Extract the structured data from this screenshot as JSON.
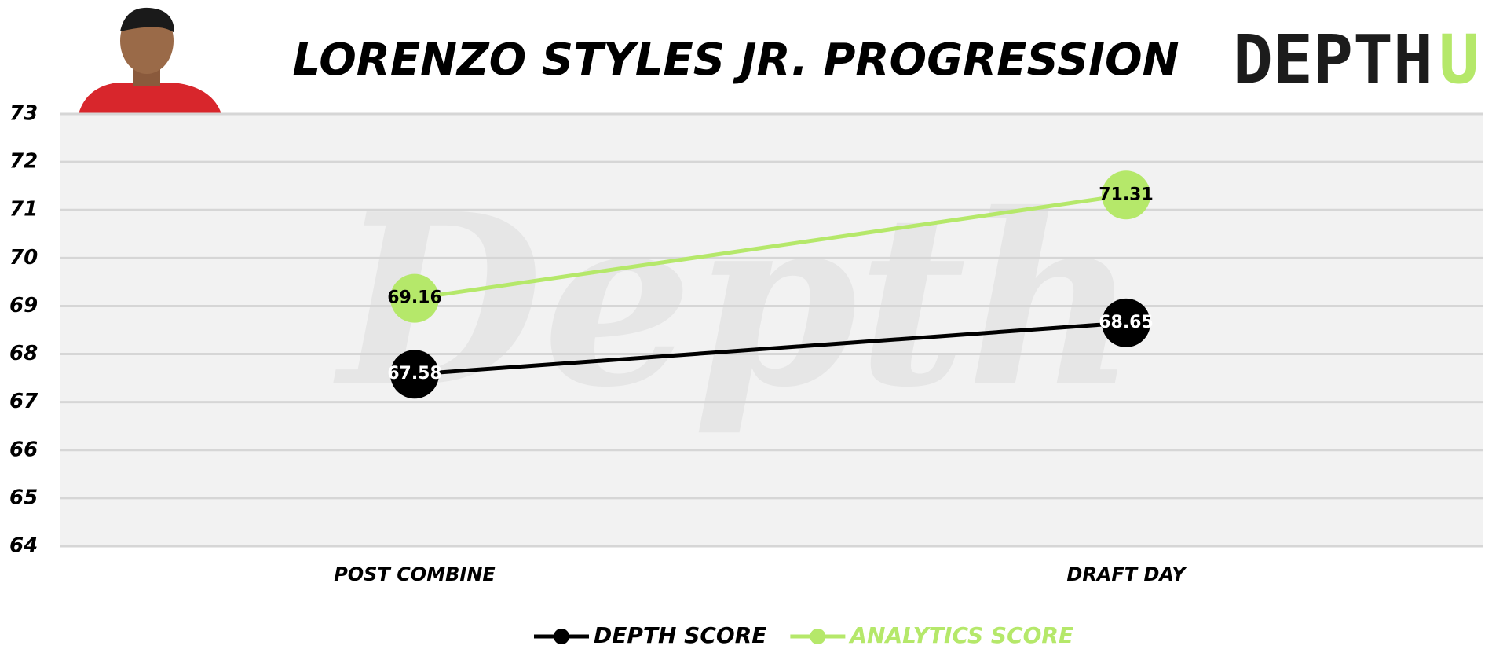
{
  "chart_data": {
    "type": "line",
    "title": "LORENZO STYLES JR. PROGRESSION",
    "categories": [
      "POST COMBINE",
      "DRAFT DAY"
    ],
    "series": [
      {
        "name": "DEPTH SCORE",
        "color": "#000000",
        "values": [
          67.58,
          68.65
        ]
      },
      {
        "name": "ANALYTICS SCORE",
        "color": "#b5e86a",
        "values": [
          69.16,
          71.31
        ]
      }
    ],
    "ylim": [
      64,
      73
    ],
    "yticks": [
      64,
      65,
      66,
      67,
      68,
      69,
      70,
      71,
      72,
      73
    ],
    "grid": true,
    "legend": "bottom"
  },
  "logo": {
    "text": "DEPTH",
    "accent": "U"
  },
  "watermark": "Depth"
}
